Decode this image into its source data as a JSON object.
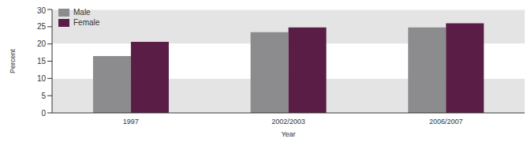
{
  "chart_data": {
    "type": "bar",
    "x_label": "Year",
    "y_label": "Percent",
    "categories": [
      "1997",
      "2002/2003",
      "2006/2007"
    ],
    "series": [
      {
        "name": "Male",
        "color": "#8c8c8e",
        "values": [
          16.5,
          23.4,
          24.8
        ]
      },
      {
        "name": "Female",
        "color": "#5a1e46",
        "values": [
          20.6,
          24.8,
          26.0
        ]
      }
    ],
    "ylim": [
      0,
      30
    ],
    "yticks": [
      0,
      5,
      10,
      15,
      20,
      25,
      30
    ],
    "grid": true,
    "legend": "upper left"
  }
}
